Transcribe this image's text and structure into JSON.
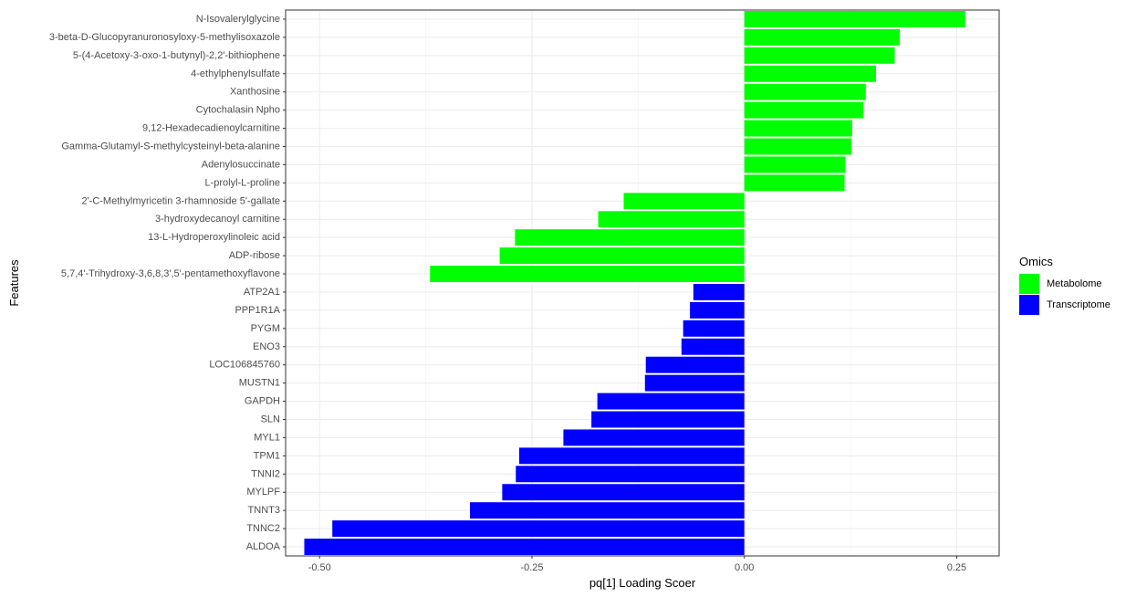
{
  "chart_data": {
    "type": "bar",
    "orientation": "horizontal",
    "xlabel": "pq[1] Loading Scoer",
    "ylabel": "Features",
    "xlim": [
      -0.54,
      0.3
    ],
    "xticks": [
      -0.5,
      -0.25,
      0.0,
      0.25
    ],
    "xtick_labels": [
      "-0.50",
      "-0.25",
      "0.00",
      "0.25"
    ],
    "grid": true,
    "legend": {
      "title": "Omics",
      "position": "right",
      "entries": [
        {
          "name": "Metabolome",
          "color": "#00ff00"
        },
        {
          "name": "Transcriptome",
          "color": "#0000ff"
        }
      ]
    },
    "categories": [
      "N-Isovalerylglycine",
      "3-beta-D-Glucopyranuronosyloxy-5-methylisoxazole",
      "5-(4-Acetoxy-3-oxo-1-butynyl)-2,2'-bithiophene",
      "4-ethylphenylsulfate",
      "Xanthosine",
      "Cytochalasin Npho",
      "9,12-Hexadecadienoylcarnitine",
      "Gamma-Glutamyl-S-methylcysteinyl-beta-alanine",
      "Adenylosuccinate",
      "L-prolyl-L-proline",
      "2'-C-Methylmyricetin 3-rhamnoside 5'-gallate",
      "3-hydroxydecanoyl carnitine",
      "13-L-Hydroperoxylinoleic acid",
      "ADP-ribose",
      "5,7,4'-Trihydroxy-3,6,8,3',5'-pentamethoxyflavone",
      "ATP2A1",
      "PPP1R1A",
      "PYGM",
      "ENO3",
      "LOC106845760",
      "MUSTN1",
      "GAPDH",
      "SLN",
      "MYL1",
      "TPM1",
      "TNNI2",
      "MYLPF",
      "TNNT3",
      "TNNC2",
      "ALDOA"
    ],
    "values": [
      0.26,
      0.183,
      0.177,
      0.155,
      0.143,
      0.14,
      0.127,
      0.126,
      0.119,
      0.118,
      -0.142,
      -0.172,
      -0.27,
      -0.288,
      -0.37,
      -0.06,
      -0.064,
      -0.072,
      -0.074,
      -0.116,
      -0.117,
      -0.173,
      -0.18,
      -0.213,
      -0.265,
      -0.269,
      -0.285,
      -0.323,
      -0.485,
      -0.518
    ],
    "groups": [
      "Metabolome",
      "Metabolome",
      "Metabolome",
      "Metabolome",
      "Metabolome",
      "Metabolome",
      "Metabolome",
      "Metabolome",
      "Metabolome",
      "Metabolome",
      "Metabolome",
      "Metabolome",
      "Metabolome",
      "Metabolome",
      "Metabolome",
      "Transcriptome",
      "Transcriptome",
      "Transcriptome",
      "Transcriptome",
      "Transcriptome",
      "Transcriptome",
      "Transcriptome",
      "Transcriptome",
      "Transcriptome",
      "Transcriptome",
      "Transcriptome",
      "Transcriptome",
      "Transcriptome",
      "Transcriptome",
      "Transcriptome"
    ]
  }
}
